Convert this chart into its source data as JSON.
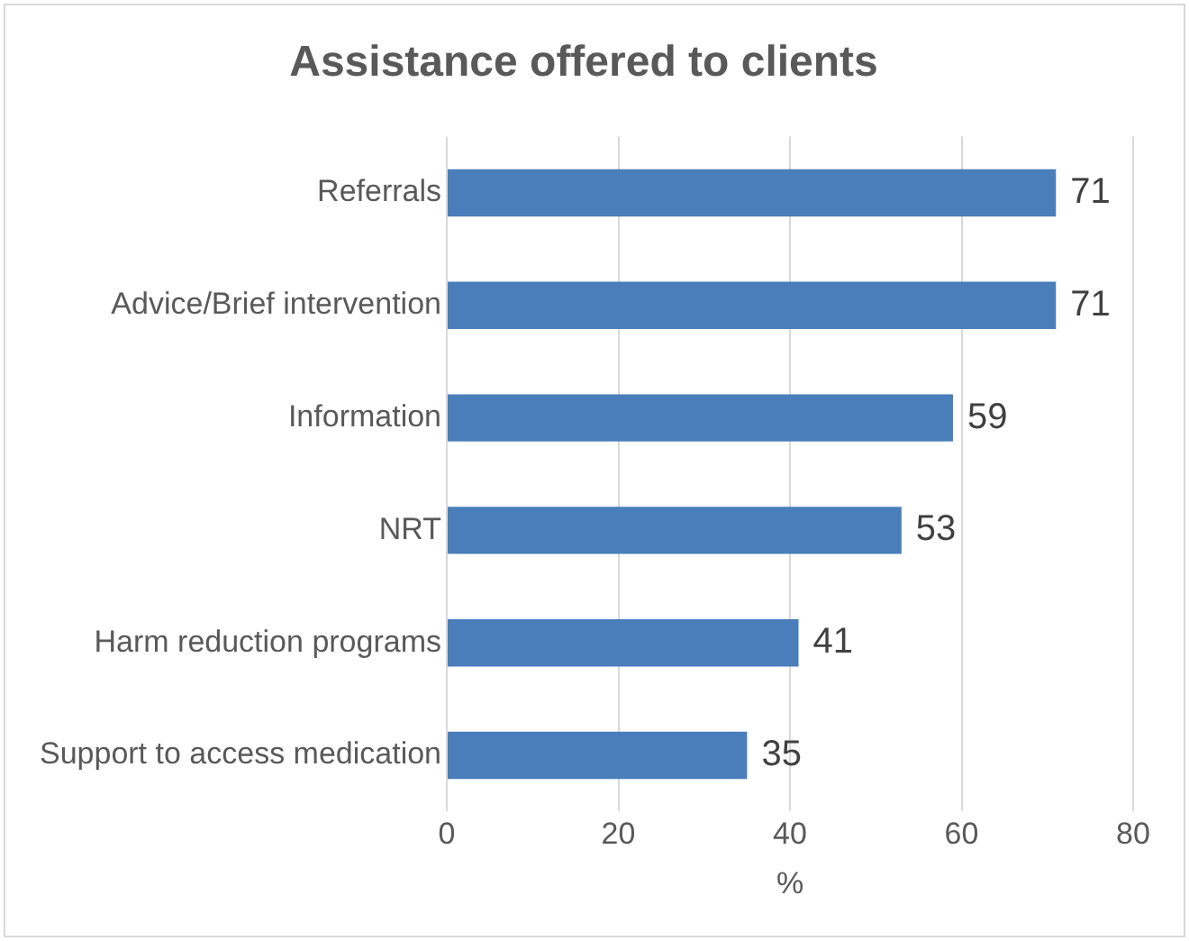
{
  "chart_data": {
    "type": "bar",
    "orientation": "horizontal",
    "title": "Assistance offered to clients",
    "xlabel": "%",
    "categories": [
      "Referrals",
      "Advice/Brief intervention",
      "Information",
      "NRT",
      "Harm reduction programs",
      "Support to access medication"
    ],
    "values": [
      71,
      71,
      59,
      53,
      41,
      35
    ],
    "color": "#4a7ebb",
    "xlim": [
      0,
      80
    ],
    "xticks": [
      0,
      20,
      40,
      60,
      80
    ],
    "grid": "x",
    "data_labels": true,
    "legend": false
  }
}
